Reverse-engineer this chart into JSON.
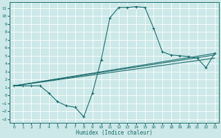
{
  "xlabel": "Humidex (Indice chaleur)",
  "ylabel": "",
  "bg_color": "#cce8e8",
  "grid_color": "#ffffff",
  "line_color": "#1a6b6b",
  "xlim": [
    -0.5,
    23.5
  ],
  "ylim": [
    -3.5,
    11.8
  ],
  "xticks": [
    0,
    1,
    2,
    3,
    4,
    5,
    6,
    7,
    8,
    9,
    10,
    11,
    12,
    13,
    14,
    15,
    16,
    17,
    18,
    19,
    20,
    21,
    22,
    23
  ],
  "yticks": [
    -3,
    -2,
    -1,
    0,
    1,
    2,
    3,
    4,
    5,
    6,
    7,
    8,
    9,
    10,
    11
  ],
  "series1_x": [
    0,
    1,
    2,
    3,
    4,
    5,
    6,
    7,
    8,
    9,
    10,
    11,
    12,
    13,
    14,
    15,
    16,
    17,
    18,
    19,
    20,
    21,
    22,
    23
  ],
  "series1_y": [
    1.2,
    1.2,
    1.2,
    1.2,
    0.3,
    -0.8,
    -1.3,
    -1.5,
    -2.7,
    0.3,
    4.5,
    9.8,
    11.1,
    11.1,
    11.2,
    11.1,
    8.5,
    5.5,
    5.1,
    5.0,
    4.9,
    4.7,
    3.5,
    5.3
  ],
  "series2_x": [
    0,
    23
  ],
  "series2_y": [
    1.2,
    5.3
  ],
  "series3_x": [
    0,
    23
  ],
  "series3_y": [
    1.2,
    5.1
  ],
  "series4_x": [
    0,
    23
  ],
  "series4_y": [
    1.2,
    4.7
  ]
}
